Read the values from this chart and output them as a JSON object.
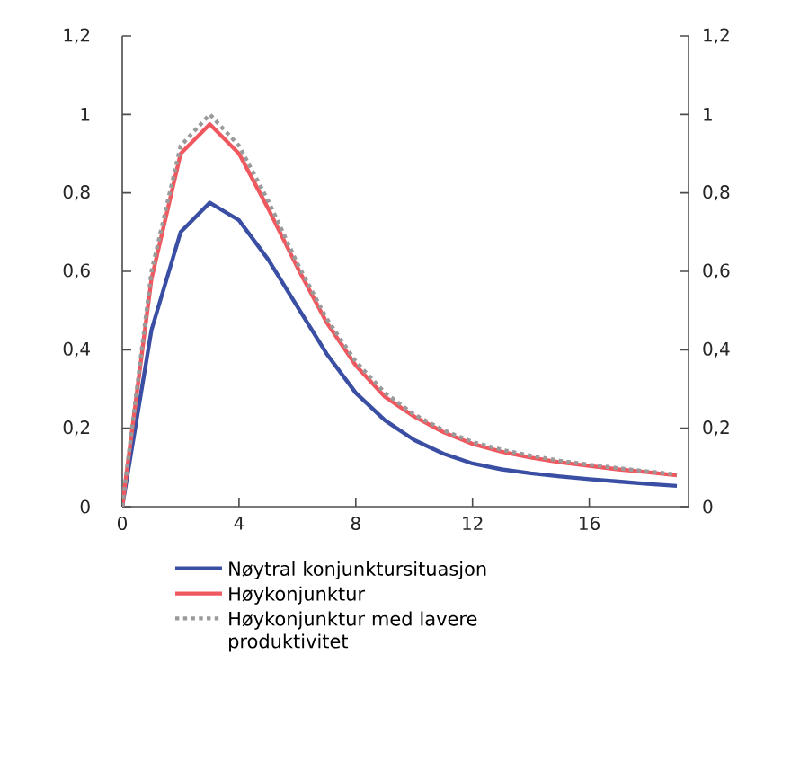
{
  "chart_data": {
    "type": "line",
    "x": [
      0,
      1,
      2,
      3,
      4,
      5,
      6,
      7,
      8,
      9,
      10,
      11,
      12,
      13,
      14,
      15,
      16,
      17,
      18,
      19
    ],
    "xlim": [
      0,
      19.4
    ],
    "xticks": [
      0,
      4,
      8,
      12,
      16
    ],
    "ylim": [
      0,
      1.2
    ],
    "yticks": [
      0,
      {
        "value": 0.2,
        "label": "0,2"
      },
      {
        "value": 0.4,
        "label": "0,4"
      },
      {
        "value": 0.6,
        "label": "0,6"
      },
      {
        "value": 0.8,
        "label": "0,8"
      },
      1,
      {
        "value": 1.2,
        "label": "1,2"
      }
    ],
    "y2lim": [
      0,
      1.2
    ],
    "y2ticks": [
      0,
      {
        "value": 0.2,
        "label": "0,2"
      },
      {
        "value": 0.4,
        "label": "0,4"
      },
      {
        "value": 0.6,
        "label": "0,6"
      },
      {
        "value": 0.8,
        "label": "0,8"
      },
      1,
      {
        "value": 1.2,
        "label": "1,2"
      }
    ],
    "legend": "bottom",
    "grid": false,
    "series": [
      {
        "name": "Nøytral konjunktursituasjon",
        "color": "#3a4fa3",
        "line_style": "solid",
        "values": [
          0,
          0.45,
          0.7,
          0.775,
          0.73,
          0.63,
          0.51,
          0.39,
          0.29,
          0.22,
          0.17,
          0.135,
          0.11,
          0.095,
          0.085,
          0.077,
          0.07,
          0.064,
          0.058,
          0.053
        ]
      },
      {
        "name": "Høykonjunktur",
        "color": "#f0585f",
        "line_style": "solid",
        "values": [
          0,
          0.58,
          0.9,
          0.975,
          0.9,
          0.76,
          0.61,
          0.47,
          0.36,
          0.28,
          0.23,
          0.19,
          0.16,
          0.14,
          0.125,
          0.113,
          0.104,
          0.095,
          0.088,
          0.08
        ]
      },
      {
        "name": "Høykonjunktur med lavere produktivitet",
        "color": "#9a9a9a",
        "line_style": "dotted",
        "values": [
          0,
          0.6,
          0.92,
          1.0,
          0.92,
          0.78,
          0.62,
          0.48,
          0.37,
          0.29,
          0.235,
          0.195,
          0.165,
          0.145,
          0.13,
          0.117,
          0.107,
          0.098,
          0.09,
          0.082
        ]
      }
    ]
  }
}
